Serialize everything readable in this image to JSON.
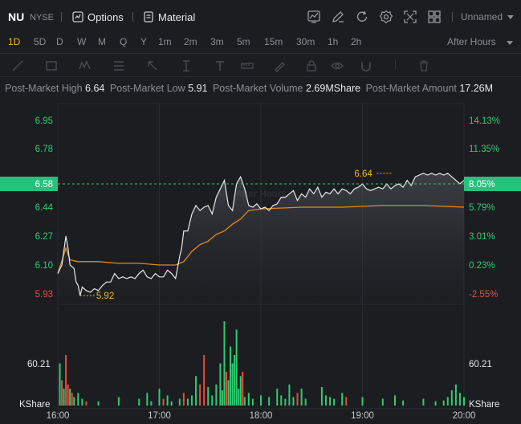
{
  "header": {
    "symbol": "NU",
    "exchange": "NYSE",
    "options_label": "Options",
    "material_label": "Material",
    "layout_label": "Unnamed"
  },
  "icons": [
    "options-icon",
    "material-icon",
    "chart-style-icon",
    "draw-icon",
    "refresh-icon",
    "settings-icon",
    "fullscreen-icon",
    "layout-grid-icon"
  ],
  "periods": [
    {
      "label": "1D",
      "active": true
    },
    {
      "label": "5D"
    },
    {
      "label": "D"
    },
    {
      "label": "W"
    },
    {
      "label": "M"
    },
    {
      "label": "Q"
    },
    {
      "label": "Y"
    },
    {
      "label": "1m"
    },
    {
      "label": "2m"
    },
    {
      "label": "3m"
    },
    {
      "label": "5m"
    },
    {
      "label": "15m"
    },
    {
      "label": "30m"
    },
    {
      "label": "1h"
    },
    {
      "label": "2h"
    }
  ],
  "session_label": "After Hours",
  "stats": {
    "high_label": "Post-Market High",
    "high_value": "6.64",
    "low_label": "Post-Market Low",
    "low_value": "5.91",
    "volume_label": "Post-Market Volume",
    "volume_value": "2.69MShare",
    "amount_label": "Post-Market Amount",
    "amount_value": "17.26M"
  },
  "colors": {
    "up": "#2ecc71",
    "down": "#e74c3c",
    "price_line": "#e8e8e8",
    "avg_line": "#e08a1e",
    "marker": "#f0b90b",
    "current_price_bg": "#27c07d"
  },
  "chart_data": {
    "type": "line",
    "watermark": "After Hours",
    "y_left_ticks": [
      "6.95",
      "6.78",
      "6.58",
      "6.44",
      "6.27",
      "6.10",
      "5.93"
    ],
    "y_right_ticks": [
      "14.13%",
      "11.35%",
      "8.05%",
      "5.79%",
      "3.01%",
      "0.23%",
      "-2.55%"
    ],
    "current_price": "6.58",
    "current_change": "8.05%",
    "high_marker": "6.64",
    "low_marker": "5.92",
    "x_ticks": [
      "16:00",
      "17:00",
      "18:00",
      "19:00",
      "20:00"
    ],
    "volume_label_left": "60.21",
    "volume_label_right": "60.21",
    "volume_unit_left": "KShare",
    "volume_unit_right": "KShare",
    "ylim": [
      5.85,
      7.0
    ],
    "price": [
      [
        0,
        6.05
      ],
      [
        2,
        6.1
      ],
      [
        4,
        6.27
      ],
      [
        5,
        6.2
      ],
      [
        6,
        6.1
      ],
      [
        8,
        6.08
      ],
      [
        9,
        6.0
      ],
      [
        10,
        5.98
      ],
      [
        11,
        5.92
      ],
      [
        12,
        5.97
      ],
      [
        14,
        5.95
      ],
      [
        16,
        5.94
      ],
      [
        18,
        5.96
      ],
      [
        20,
        5.95
      ],
      [
        22,
        5.98
      ],
      [
        24,
        6.0
      ],
      [
        26,
        6.0
      ],
      [
        28,
        6.05
      ],
      [
        30,
        6.02
      ],
      [
        32,
        6.03
      ],
      [
        34,
        6.02
      ],
      [
        36,
        6.03
      ],
      [
        38,
        6.02
      ],
      [
        40,
        6.05
      ],
      [
        42,
        6.07
      ],
      [
        44,
        6.03
      ],
      [
        46,
        6.02
      ],
      [
        48,
        6.05
      ],
      [
        50,
        6.03
      ],
      [
        52,
        6.03
      ],
      [
        54,
        6.07
      ],
      [
        56,
        6.05
      ],
      [
        58,
        6.02
      ],
      [
        60,
        6.15
      ],
      [
        61,
        6.2
      ],
      [
        62,
        6.3
      ],
      [
        64,
        6.3
      ],
      [
        66,
        6.4
      ],
      [
        68,
        6.45
      ],
      [
        70,
        6.42
      ],
      [
        72,
        6.44
      ],
      [
        74,
        6.45
      ],
      [
        76,
        6.4
      ],
      [
        78,
        6.5
      ],
      [
        80,
        6.55
      ],
      [
        82,
        6.6
      ],
      [
        84,
        6.45
      ],
      [
        86,
        6.42
      ],
      [
        88,
        6.58
      ],
      [
        90,
        6.62
      ],
      [
        92,
        6.55
      ],
      [
        94,
        6.45
      ],
      [
        96,
        6.44
      ],
      [
        98,
        6.46
      ],
      [
        100,
        6.43
      ],
      [
        102,
        6.44
      ],
      [
        104,
        6.42
      ],
      [
        106,
        6.45
      ],
      [
        108,
        6.46
      ],
      [
        110,
        6.5
      ],
      [
        112,
        6.5
      ],
      [
        114,
        6.52
      ],
      [
        116,
        6.54
      ],
      [
        118,
        6.48
      ],
      [
        120,
        6.52
      ],
      [
        122,
        6.5
      ],
      [
        124,
        6.55
      ],
      [
        126,
        6.52
      ],
      [
        128,
        6.56
      ],
      [
        130,
        6.5
      ],
      [
        132,
        6.53
      ],
      [
        134,
        6.52
      ],
      [
        136,
        6.55
      ],
      [
        138,
        6.52
      ],
      [
        140,
        6.55
      ],
      [
        142,
        6.54
      ],
      [
        144,
        6.52
      ],
      [
        146,
        6.55
      ],
      [
        148,
        6.56
      ],
      [
        150,
        6.58
      ],
      [
        152,
        6.55
      ],
      [
        154,
        6.54
      ],
      [
        156,
        6.55
      ],
      [
        158,
        6.56
      ],
      [
        160,
        6.55
      ],
      [
        162,
        6.58
      ],
      [
        164,
        6.55
      ],
      [
        166,
        6.57
      ],
      [
        168,
        6.58
      ],
      [
        170,
        6.56
      ],
      [
        172,
        6.6
      ],
      [
        174,
        6.57
      ],
      [
        176,
        6.62
      ],
      [
        178,
        6.63
      ],
      [
        180,
        6.64
      ],
      [
        182,
        6.63
      ],
      [
        184,
        6.64
      ],
      [
        186,
        6.63
      ],
      [
        188,
        6.64
      ],
      [
        190,
        6.63
      ],
      [
        192,
        6.64
      ],
      [
        194,
        6.62
      ],
      [
        196,
        6.6
      ],
      [
        198,
        6.58
      ],
      [
        200,
        6.6
      ]
    ],
    "avg": [
      [
        0,
        6.05
      ],
      [
        4,
        6.2
      ],
      [
        6,
        6.13
      ],
      [
        10,
        6.12
      ],
      [
        20,
        6.12
      ],
      [
        30,
        6.11
      ],
      [
        40,
        6.11
      ],
      [
        50,
        6.1
      ],
      [
        58,
        6.1
      ],
      [
        62,
        6.12
      ],
      [
        66,
        6.18
      ],
      [
        70,
        6.22
      ],
      [
        74,
        6.24
      ],
      [
        78,
        6.28
      ],
      [
        82,
        6.3
      ],
      [
        86,
        6.34
      ],
      [
        90,
        6.37
      ],
      [
        94,
        6.42
      ],
      [
        100,
        6.43
      ],
      [
        120,
        6.44
      ],
      [
        140,
        6.44
      ],
      [
        160,
        6.45
      ],
      [
        180,
        6.45
      ],
      [
        200,
        6.44
      ]
    ],
    "volume": [
      [
        1,
        0.5,
        "up"
      ],
      [
        2,
        0.3,
        "down"
      ],
      [
        3,
        0.2,
        "up"
      ],
      [
        4,
        0.6,
        "down"
      ],
      [
        5,
        0.25,
        "down"
      ],
      [
        6,
        0.2,
        "up"
      ],
      [
        7,
        0.15,
        "down"
      ],
      [
        8,
        0.1,
        "up"
      ],
      [
        10,
        0.15,
        "up"
      ],
      [
        12,
        0.08,
        "up"
      ],
      [
        14,
        0.05,
        "down"
      ],
      [
        20,
        0.05,
        "up"
      ],
      [
        30,
        0.1,
        "up"
      ],
      [
        40,
        0.08,
        "up"
      ],
      [
        44,
        0.15,
        "up"
      ],
      [
        46,
        0.05,
        "up"
      ],
      [
        50,
        0.2,
        "up"
      ],
      [
        52,
        0.08,
        "down"
      ],
      [
        54,
        0.12,
        "up"
      ],
      [
        56,
        0.05,
        "up"
      ],
      [
        60,
        0.08,
        "up"
      ],
      [
        62,
        0.15,
        "down"
      ],
      [
        64,
        0.08,
        "up"
      ],
      [
        66,
        0.12,
        "up"
      ],
      [
        68,
        0.35,
        "up"
      ],
      [
        70,
        0.25,
        "down"
      ],
      [
        72,
        0.6,
        "down"
      ],
      [
        74,
        0.22,
        "up"
      ],
      [
        76,
        0.12,
        "up"
      ],
      [
        78,
        0.25,
        "up"
      ],
      [
        80,
        0.5,
        "up"
      ],
      [
        81,
        0.18,
        "up"
      ],
      [
        82,
        1.0,
        "up"
      ],
      [
        83,
        0.4,
        "down"
      ],
      [
        84,
        0.3,
        "up"
      ],
      [
        85,
        0.7,
        "up"
      ],
      [
        86,
        0.5,
        "up"
      ],
      [
        87,
        0.6,
        "up"
      ],
      [
        88,
        0.9,
        "up"
      ],
      [
        89,
        0.2,
        "up"
      ],
      [
        90,
        0.35,
        "up"
      ],
      [
        91,
        0.4,
        "down"
      ],
      [
        92,
        0.1,
        "up"
      ],
      [
        94,
        0.15,
        "up"
      ],
      [
        96,
        0.08,
        "up"
      ],
      [
        100,
        0.12,
        "up"
      ],
      [
        104,
        0.1,
        "up"
      ],
      [
        108,
        0.2,
        "up"
      ],
      [
        110,
        0.12,
        "up"
      ],
      [
        112,
        0.08,
        "up"
      ],
      [
        114,
        0.25,
        "up"
      ],
      [
        116,
        0.1,
        "up"
      ],
      [
        118,
        0.15,
        "down"
      ],
      [
        120,
        0.2,
        "up"
      ],
      [
        122,
        0.08,
        "up"
      ],
      [
        130,
        0.22,
        "up"
      ],
      [
        132,
        0.12,
        "up"
      ],
      [
        134,
        0.1,
        "up"
      ],
      [
        136,
        0.08,
        "up"
      ],
      [
        140,
        0.15,
        "up"
      ],
      [
        142,
        0.1,
        "down"
      ],
      [
        150,
        0.1,
        "up"
      ],
      [
        160,
        0.08,
        "up"
      ],
      [
        166,
        0.12,
        "up"
      ],
      [
        170,
        0.06,
        "up"
      ],
      [
        180,
        0.08,
        "up"
      ],
      [
        186,
        0.05,
        "up"
      ],
      [
        190,
        0.06,
        "up"
      ],
      [
        192,
        0.1,
        "up"
      ],
      [
        194,
        0.18,
        "up"
      ],
      [
        196,
        0.25,
        "up"
      ],
      [
        198,
        0.15,
        "up"
      ],
      [
        200,
        0.1,
        "up"
      ]
    ]
  }
}
